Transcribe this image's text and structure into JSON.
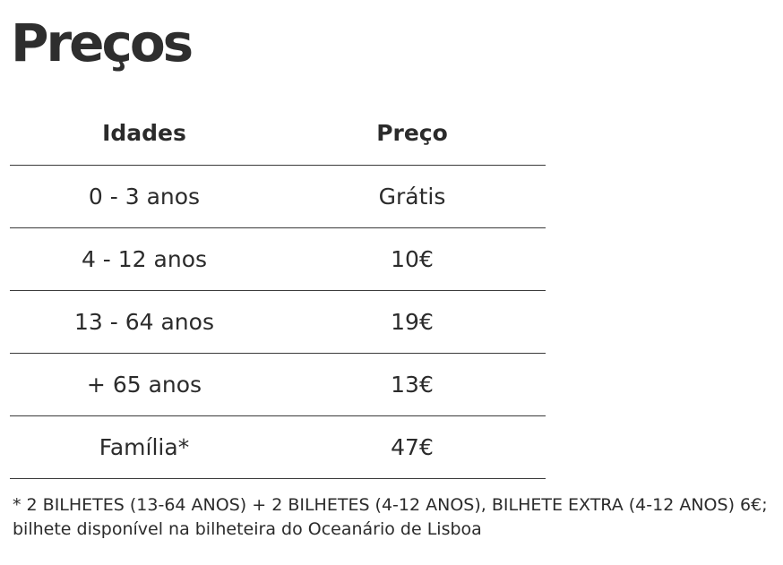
{
  "title": "Preços",
  "table": {
    "headers": {
      "age": "Idades",
      "price": "Preço"
    },
    "rows": [
      {
        "age": "0 - 3 anos",
        "price": "Grátis"
      },
      {
        "age": "4 - 12 anos",
        "price": "10€"
      },
      {
        "age": "13 - 64 anos",
        "price": "19€"
      },
      {
        "age": "+ 65 anos",
        "price": "13€"
      },
      {
        "age": "Família*",
        "price": "47€"
      }
    ]
  },
  "footnote": {
    "line1": "* 2 BILHETES (13-64 ANOS) + 2 BILHETES (4-12 ANOS), BILHETE EXTRA (4-12 ANOS) 6€;",
    "line2": "bilhete disponível na bilheteira do Oceanário de Lisboa"
  }
}
